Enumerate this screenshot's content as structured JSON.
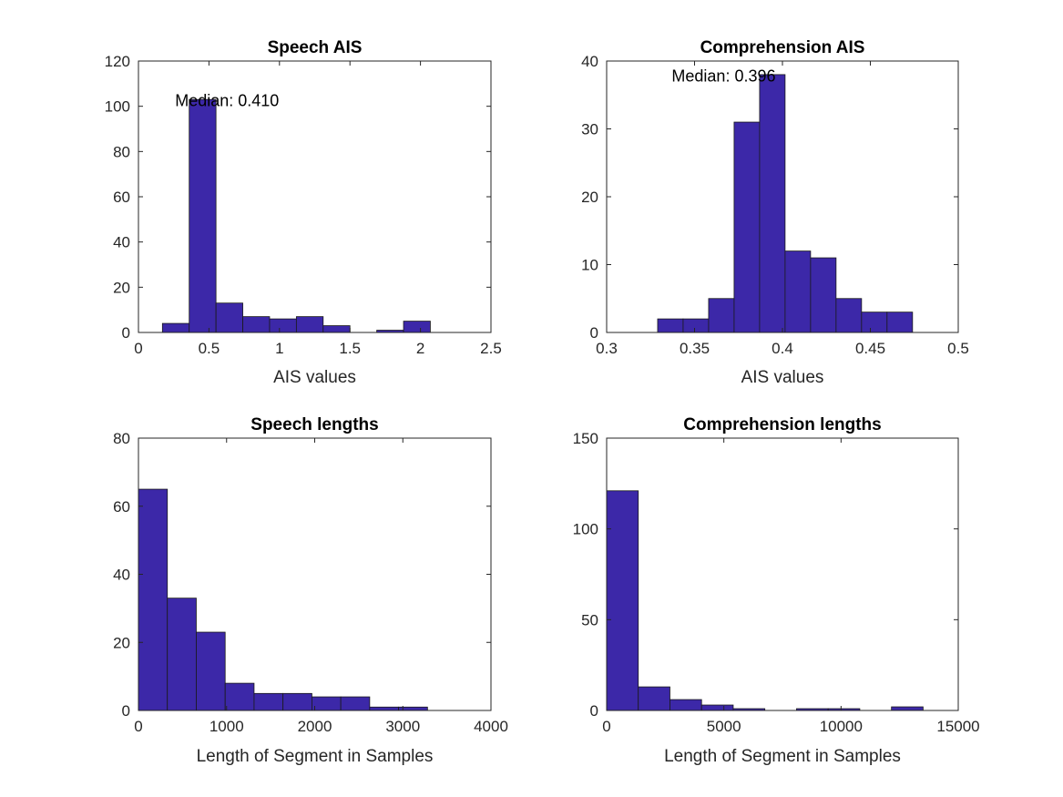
{
  "colors": {
    "bar": "#3c28a8",
    "axis": "#262626",
    "background": "#ffffff"
  },
  "chart_data": [
    {
      "type": "bar",
      "title": "Speech AIS",
      "xlabel": "AIS values",
      "ylabel": "",
      "xlim": [
        0,
        2.5
      ],
      "ylim": [
        0,
        120
      ],
      "xticks": [
        0,
        0.5,
        1,
        1.5,
        2,
        2.5
      ],
      "xtick_labels": [
        "0",
        "0.5",
        "1",
        "1.5",
        "2",
        "2.5"
      ],
      "yticks": [
        0,
        20,
        40,
        60,
        80,
        100,
        120
      ],
      "ytick_labels": [
        "0",
        "20",
        "40",
        "60",
        "80",
        "100",
        "120"
      ],
      "bin_edges": [
        0.17,
        0.36,
        0.55,
        0.74,
        0.93,
        1.12,
        1.31,
        1.5,
        1.69,
        1.88,
        2.07
      ],
      "values": [
        4,
        103,
        13,
        7,
        6,
        7,
        3,
        0,
        1,
        5
      ],
      "annotation": {
        "text": "Median: 0.410",
        "x": 0.26,
        "y": 100
      }
    },
    {
      "type": "bar",
      "title": "Comprehension AIS",
      "xlabel": "AIS values",
      "ylabel": "",
      "xlim": [
        0.3,
        0.5
      ],
      "ylim": [
        0,
        40
      ],
      "xticks": [
        0.3,
        0.35,
        0.4,
        0.45,
        0.5
      ],
      "xtick_labels": [
        "0.3",
        "0.35",
        "0.4",
        "0.45",
        "0.5"
      ],
      "yticks": [
        0,
        10,
        20,
        30,
        40
      ],
      "ytick_labels": [
        "0",
        "10",
        "20",
        "30",
        "40"
      ],
      "bin_edges": [
        0.329,
        0.3435,
        0.358,
        0.3725,
        0.387,
        0.4015,
        0.416,
        0.4305,
        0.445,
        0.4595,
        0.474
      ],
      "values": [
        2,
        2,
        5,
        31,
        38,
        12,
        11,
        5,
        3,
        3
      ],
      "annotation": {
        "text": "Median: 0.396",
        "x": 0.337,
        "y": 37
      }
    },
    {
      "type": "bar",
      "title": "Speech lengths",
      "xlabel": "Length of Segment in Samples",
      "ylabel": "",
      "xlim": [
        0,
        4000
      ],
      "ylim": [
        0,
        80
      ],
      "xticks": [
        0,
        1000,
        2000,
        3000,
        4000
      ],
      "xtick_labels": [
        "0",
        "1000",
        "2000",
        "3000",
        "4000"
      ],
      "yticks": [
        0,
        20,
        40,
        60,
        80
      ],
      "ytick_labels": [
        "0",
        "20",
        "40",
        "60",
        "80"
      ],
      "bin_edges": [
        0,
        328,
        656,
        984,
        1312,
        1640,
        1968,
        2296,
        2624,
        2952,
        3280
      ],
      "values": [
        65,
        33,
        23,
        8,
        5,
        5,
        4,
        4,
        1,
        1
      ]
    },
    {
      "type": "bar",
      "title": "Comprehension lengths",
      "xlabel": "Length of Segment in Samples",
      "ylabel": "",
      "xlim": [
        0,
        15000
      ],
      "ylim": [
        0,
        150
      ],
      "xticks": [
        0,
        5000,
        10000,
        15000
      ],
      "xtick_labels": [
        "0",
        "5000",
        "10000",
        "15000"
      ],
      "yticks": [
        0,
        50,
        100,
        150
      ],
      "ytick_labels": [
        "0",
        "50",
        "100",
        "150"
      ],
      "bin_edges": [
        0,
        1350,
        2700,
        4050,
        5400,
        6750,
        8100,
        9450,
        10800,
        12150,
        13500
      ],
      "values": [
        121,
        13,
        6,
        3,
        1,
        0,
        1,
        1,
        0,
        2
      ]
    }
  ]
}
